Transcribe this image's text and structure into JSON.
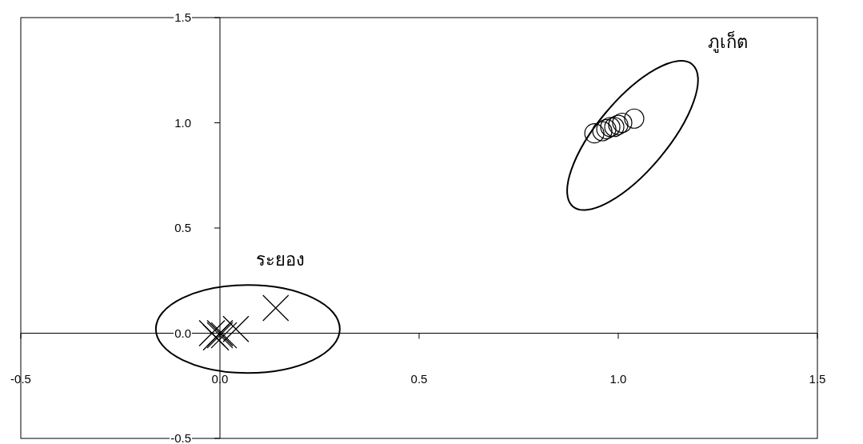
{
  "chart_data": {
    "type": "scatter",
    "xlim": [
      -0.5,
      1.5
    ],
    "ylim": [
      -0.5,
      1.5
    ],
    "xticks": [
      {
        "value": -0.5,
        "label": "-0.5"
      },
      {
        "value": 0,
        "label": "0.0"
      },
      {
        "value": 0.5,
        "label": "0.5"
      },
      {
        "value": 1,
        "label": "1.0"
      },
      {
        "value": 1.5,
        "label": "1.5"
      }
    ],
    "yticks": [
      {
        "value": -0.5,
        "label": "-0.5"
      },
      {
        "value": 0,
        "label": "0.0"
      },
      {
        "value": 0.5,
        "label": "0.5"
      },
      {
        "value": 1,
        "label": "1.0"
      },
      {
        "value": 1.5,
        "label": "1.5"
      }
    ],
    "series": [
      {
        "color": "#000000",
        "marker": "cross",
        "x": [
          -0.01,
          0.0,
          -0.02,
          0.0,
          0.01,
          0.04,
          0.14
        ],
        "values": [
          -0.02,
          -0.01,
          0.0,
          0.0,
          -0.01,
          0.02,
          0.12
        ]
      },
      {
        "color": "#000000",
        "marker": "circle",
        "x": [
          0.94,
          0.96,
          0.97,
          0.98,
          0.99,
          1.0,
          1.01,
          1.04
        ],
        "values": [
          0.95,
          0.96,
          0.97,
          0.98,
          0.98,
          0.99,
          1.0,
          1.02
        ]
      }
    ],
    "annotations": [
      "ระยอง",
      "ภูเก็ต"
    ]
  }
}
